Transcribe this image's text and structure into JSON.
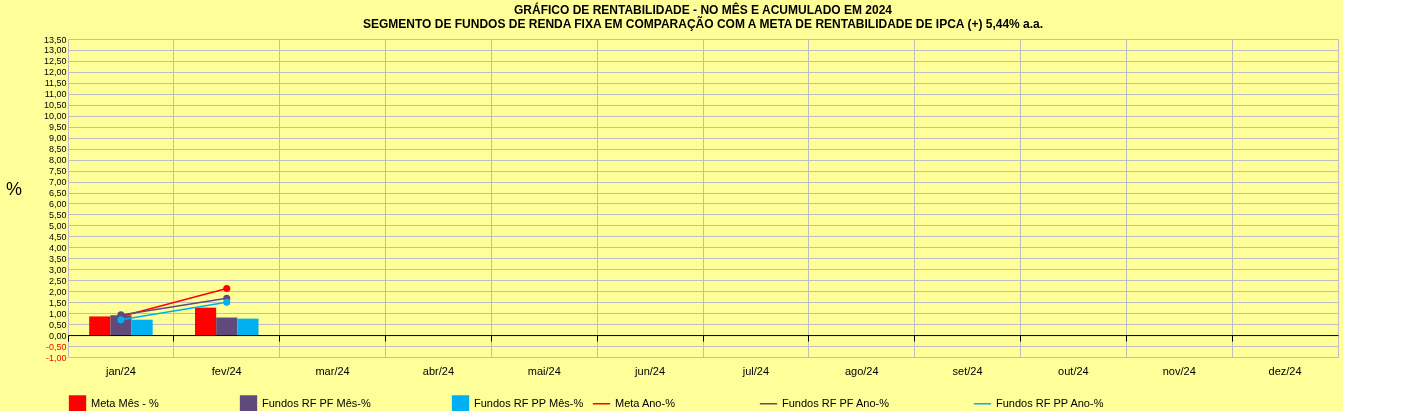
{
  "chart_data": {
    "type": "bar",
    "title": [
      "GRÁFICO DE RENTABILIDADE - NO MÊS E ACUMULADO EM 2024",
      "SEGMENTO DE FUNDOS DE RENDA FIXA EM COMPARAÇÃO COM A META DE RENTABILIDADE DE IPCA (+) 5,44% a.a."
    ],
    "ylabel": "%",
    "categories": [
      "jan/24",
      "fev/24",
      "mar/24",
      "abr/24",
      "mai/24",
      "jun/24",
      "jul/24",
      "ago/24",
      "set/24",
      "out/24",
      "nov/24",
      "dez/24"
    ],
    "series": [
      {
        "name": "Meta Mês - %",
        "type": "bar",
        "color": "#ff0000",
        "values": [
          0.85,
          1.25,
          null,
          null,
          null,
          null,
          null,
          null,
          null,
          null,
          null,
          null
        ]
      },
      {
        "name": "Fundos RF PF Mês-%",
        "type": "bar",
        "color": "#604a7b",
        "values": [
          0.9,
          0.8,
          null,
          null,
          null,
          null,
          null,
          null,
          null,
          null,
          null,
          null
        ]
      },
      {
        "name": "Fundos RF PP Mês-%",
        "type": "bar",
        "color": "#00b0f0",
        "values": [
          0.7,
          0.75,
          null,
          null,
          null,
          null,
          null,
          null,
          null,
          null,
          null,
          null
        ]
      },
      {
        "name": "Meta Ano-%",
        "type": "line",
        "color": "#ff0000",
        "values": [
          0.85,
          2.12,
          null,
          null,
          null,
          null,
          null,
          null,
          null,
          null,
          null,
          null
        ]
      },
      {
        "name": "Fundos RF PF Ano-%",
        "type": "line",
        "color": "#604a7b",
        "values": [
          0.92,
          1.68,
          null,
          null,
          null,
          null,
          null,
          null,
          null,
          null,
          null,
          null
        ]
      },
      {
        "name": "Fundos RF PP Ano-%",
        "type": "line",
        "color": "#00b0f0",
        "values": [
          0.7,
          1.5,
          null,
          null,
          null,
          null,
          null,
          null,
          null,
          null,
          null,
          null
        ]
      }
    ],
    "ylim": [
      -1,
      13.5
    ],
    "yticks": [
      {
        "value": -1,
        "label": "-1,00"
      },
      {
        "value": -0.5,
        "label": "-0,50"
      },
      {
        "value": 0,
        "label": "0,00"
      },
      {
        "value": 0.5,
        "label": "0,50"
      },
      {
        "value": 1,
        "label": "1,00"
      },
      {
        "value": 1.5,
        "label": "1,50"
      },
      {
        "value": 2,
        "label": "2,00"
      },
      {
        "value": 2.5,
        "label": "2,50"
      },
      {
        "value": 3,
        "label": "3,00"
      },
      {
        "value": 3.5,
        "label": "3,50"
      },
      {
        "value": 4,
        "label": "4,00"
      },
      {
        "value": 4.5,
        "label": "4,50"
      },
      {
        "value": 5,
        "label": "5,00"
      },
      {
        "value": 5.5,
        "label": "5,50"
      },
      {
        "value": 6,
        "label": "6,00"
      },
      {
        "value": 6.5,
        "label": "6,50"
      },
      {
        "value": 7,
        "label": "7,00"
      },
      {
        "value": 7.5,
        "label": "7,50"
      },
      {
        "value": 8,
        "label": "8,00"
      },
      {
        "value": 8.5,
        "label": "8,50"
      },
      {
        "value": 9,
        "label": "9,00"
      },
      {
        "value": 9.5,
        "label": "9,50"
      },
      {
        "value": 10,
        "label": "10,00"
      },
      {
        "value": 10.5,
        "label": "10,50"
      },
      {
        "value": 11,
        "label": "11,00"
      },
      {
        "value": 11.5,
        "label": "11,50"
      },
      {
        "value": 12,
        "label": "12,00"
      },
      {
        "value": 12.5,
        "label": "12,50"
      },
      {
        "value": 13,
        "label": "13,00"
      },
      {
        "value": 13.5,
        "label": "13,50"
      }
    ],
    "grid": true,
    "legend": "bottom",
    "marker": "circle"
  }
}
